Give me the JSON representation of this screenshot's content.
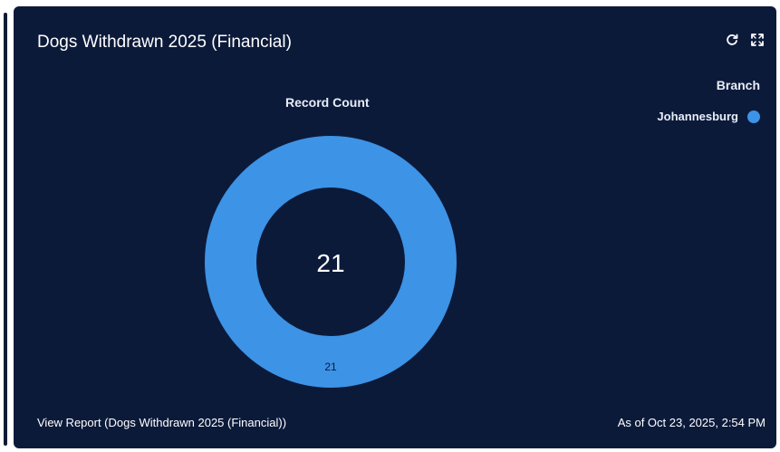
{
  "card": {
    "title": "Dogs Withdrawn 2025 (Financial)",
    "footer_link": "View Report (Dogs Withdrawn 2025 (Financial))",
    "timestamp": "As of Oct 23, 2025, 2:54 PM",
    "refresh_icon": "refresh-icon",
    "expand_icon": "expand-icon"
  },
  "colors": {
    "card_background": "#0c1a3a",
    "series_color": "#3d93e6",
    "text": "#ffffff"
  },
  "chart_data": {
    "type": "donut",
    "title": "Record Count",
    "total_label": "21",
    "legend_title": "Branch",
    "legend_position": "top-right",
    "series": [
      {
        "name": "Johannesburg",
        "value": 21,
        "label": "21",
        "color": "#3d93e6"
      }
    ]
  }
}
